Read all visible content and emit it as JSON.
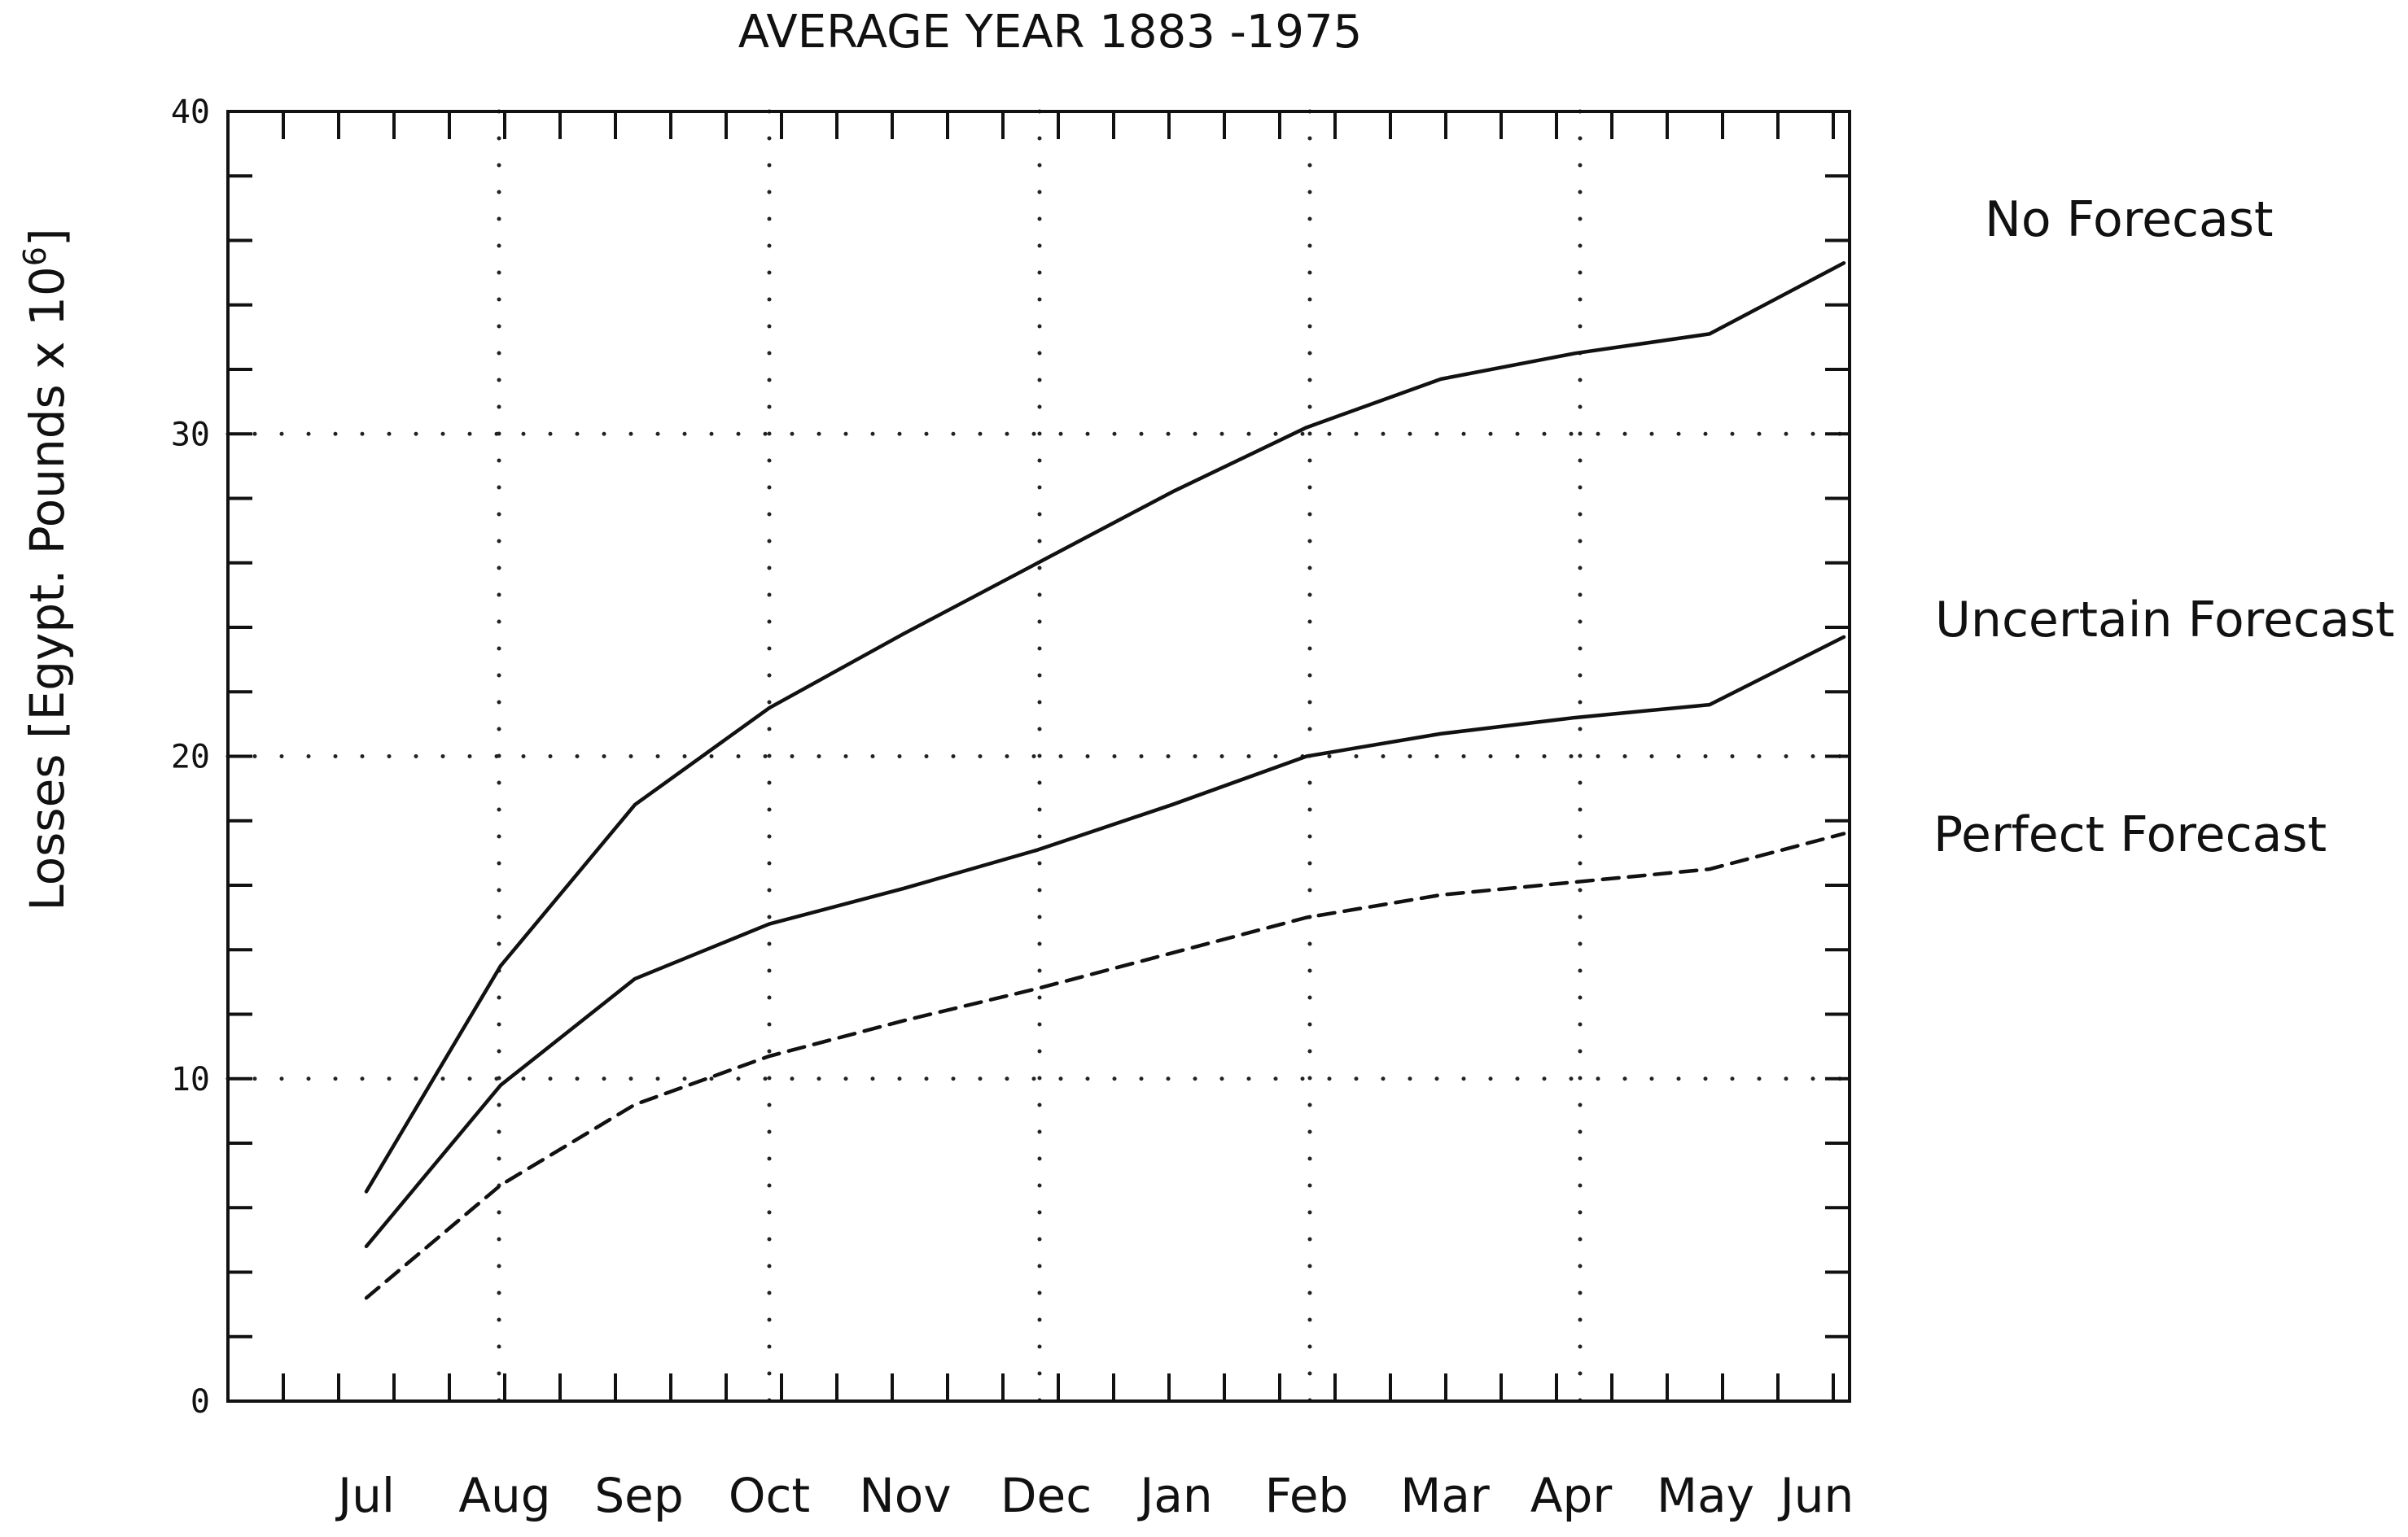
{
  "chart_data": {
    "type": "line",
    "title": "AVERAGE  YEAR  1883 -1975",
    "xlabel": "",
    "ylabel": "Losses [Egypt. Pounds x 10",
    "ylabel_superscript": "6",
    "ylabel_suffix": "]",
    "ylim": [
      0,
      40
    ],
    "yticks": [
      0,
      10,
      20,
      30,
      40
    ],
    "grid": true,
    "categories": [
      "Jul",
      "Aug",
      "Sep",
      "Oct",
      "Nov",
      "Dec",
      "Jan",
      "Feb",
      "Mar",
      "Apr",
      "May",
      "Jun"
    ],
    "series": [
      {
        "name": "No Forecast",
        "style": "solid",
        "values": [
          6.5,
          13.5,
          18.5,
          21.5,
          23.8,
          26.0,
          28.2,
          30.2,
          31.7,
          32.5,
          33.1,
          35.3
        ]
      },
      {
        "name": "Uncertain Forecast",
        "style": "solid",
        "values": [
          4.8,
          9.8,
          13.1,
          14.8,
          15.9,
          17.1,
          18.5,
          20.0,
          20.7,
          21.2,
          21.6,
          23.7
        ]
      },
      {
        "name": "Perfect Forecast",
        "style": "dashed",
        "values": [
          3.2,
          6.7,
          9.2,
          10.7,
          11.8,
          12.8,
          13.9,
          15.0,
          15.7,
          16.1,
          16.5,
          17.6
        ]
      }
    ]
  }
}
